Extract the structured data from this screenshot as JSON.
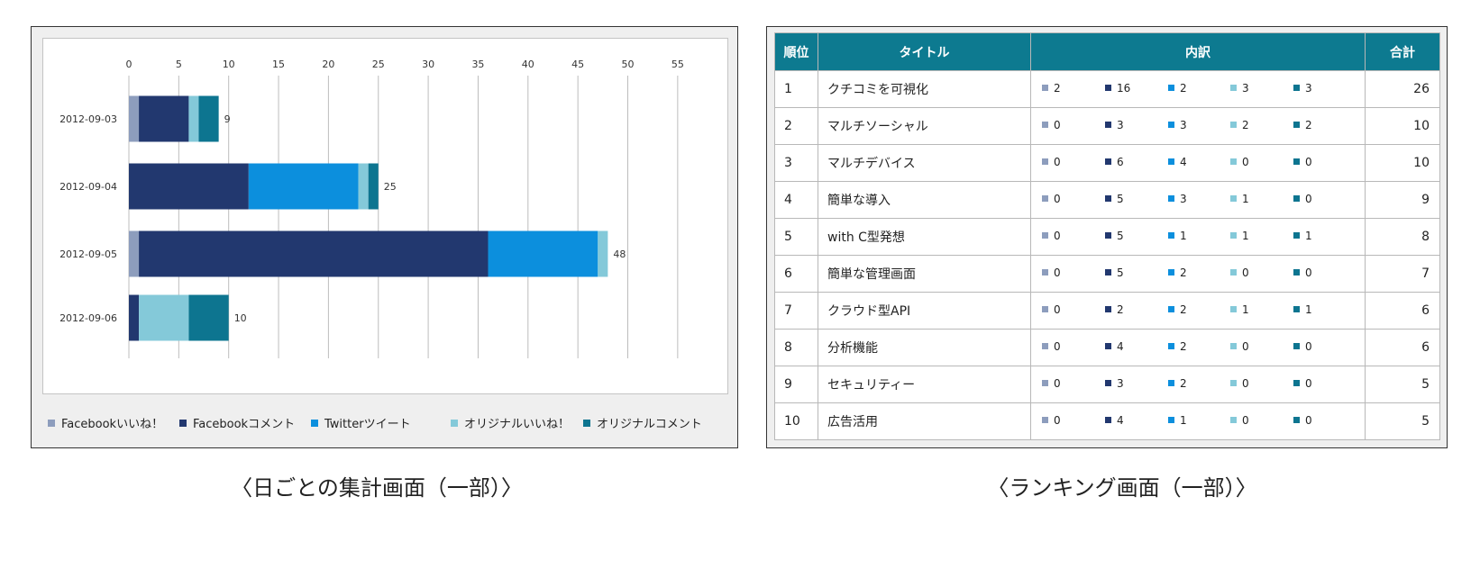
{
  "chart_data": {
    "type": "bar",
    "orientation": "horizontal",
    "stacked": true,
    "categories": [
      "2012-09-03",
      "2012-09-04",
      "2012-09-05",
      "2012-09-06"
    ],
    "series": [
      {
        "name": "Facebookいいね！",
        "color": "#8d9dbd",
        "values": [
          1,
          0,
          1,
          0
        ]
      },
      {
        "name": "Facebookコメント",
        "color": "#22386f",
        "values": [
          5,
          12,
          35,
          1
        ]
      },
      {
        "name": "Twitterツイート",
        "color": "#0c8fdd",
        "values": [
          0,
          11,
          11,
          0
        ]
      },
      {
        "name": "オリジナルいいね！",
        "color": "#84c9d9",
        "values": [
          1,
          1,
          1,
          5
        ]
      },
      {
        "name": "オリジナルコメント",
        "color": "#0d7590",
        "values": [
          2,
          1,
          0,
          4
        ]
      }
    ],
    "totals": [
      "9",
      "25",
      "48",
      "10"
    ],
    "x_ticks": [
      "0",
      "5",
      "10",
      "15",
      "20",
      "25",
      "30",
      "35",
      "40",
      "45",
      "50",
      "55"
    ],
    "xlim": [
      0,
      55
    ],
    "grid": true,
    "legend": "bottom",
    "title": "",
    "xlabel": "",
    "ylabel": ""
  },
  "captions": {
    "left": "〈日ごとの集計画面（一部）〉",
    "right": "〈ランキング画面（一部）〉"
  },
  "ranking": {
    "headers": {
      "rank": "順位",
      "title": "タイトル",
      "breakdown": "内訳",
      "total": "合計"
    },
    "colors": [
      "#8d9dbd",
      "#22386f",
      "#0c8fdd",
      "#84c9d9",
      "#0d7590"
    ],
    "rows": [
      {
        "rank": "1",
        "title": "クチコミを可視化",
        "breakdown": [
          "2",
          "16",
          "2",
          "3",
          "3"
        ],
        "total": "26"
      },
      {
        "rank": "2",
        "title": "マルチソーシャル",
        "breakdown": [
          "0",
          "3",
          "3",
          "2",
          "2"
        ],
        "total": "10"
      },
      {
        "rank": "3",
        "title": "マルチデバイス",
        "breakdown": [
          "0",
          "6",
          "4",
          "0",
          "0"
        ],
        "total": "10"
      },
      {
        "rank": "4",
        "title": "簡単な導入",
        "breakdown": [
          "0",
          "5",
          "3",
          "1",
          "0"
        ],
        "total": "9"
      },
      {
        "rank": "5",
        "title": "with C型発想",
        "breakdown": [
          "0",
          "5",
          "1",
          "1",
          "1"
        ],
        "total": "8"
      },
      {
        "rank": "6",
        "title": "簡単な管理画面",
        "breakdown": [
          "0",
          "5",
          "2",
          "0",
          "0"
        ],
        "total": "7"
      },
      {
        "rank": "7",
        "title": "クラウド型API",
        "breakdown": [
          "0",
          "2",
          "2",
          "1",
          "1"
        ],
        "total": "6"
      },
      {
        "rank": "8",
        "title": "分析機能",
        "breakdown": [
          "0",
          "4",
          "2",
          "0",
          "0"
        ],
        "total": "6"
      },
      {
        "rank": "9",
        "title": "セキュリティー",
        "breakdown": [
          "0",
          "3",
          "2",
          "0",
          "0"
        ],
        "total": "5"
      },
      {
        "rank": "10",
        "title": "広告活用",
        "breakdown": [
          "0",
          "4",
          "1",
          "0",
          "0"
        ],
        "total": "5"
      }
    ]
  }
}
